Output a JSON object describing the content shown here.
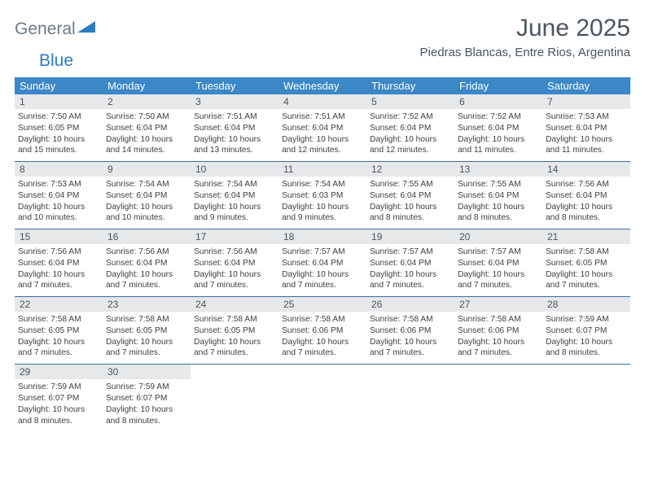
{
  "brand": {
    "word1": "General",
    "word2": "Blue"
  },
  "title": "June 2025",
  "location": "Piedras Blancas, Entre Rios, Argentina",
  "colors": {
    "header_bg": "#3b87c8",
    "header_text": "#ffffff",
    "daynum_bg": "#e7e8e9",
    "week_border": "#3b6f9f",
    "title_color": "#4a5560",
    "body_text": "#3a3f44",
    "logo_gray": "#6b7a87",
    "logo_blue": "#2f7bbf"
  },
  "dayNames": [
    "Sunday",
    "Monday",
    "Tuesday",
    "Wednesday",
    "Thursday",
    "Friday",
    "Saturday"
  ],
  "weeks": [
    [
      {
        "n": "1",
        "sr": "7:50 AM",
        "ss": "6:05 PM",
        "dl": "10 hours and 15 minutes."
      },
      {
        "n": "2",
        "sr": "7:50 AM",
        "ss": "6:04 PM",
        "dl": "10 hours and 14 minutes."
      },
      {
        "n": "3",
        "sr": "7:51 AM",
        "ss": "6:04 PM",
        "dl": "10 hours and 13 minutes."
      },
      {
        "n": "4",
        "sr": "7:51 AM",
        "ss": "6:04 PM",
        "dl": "10 hours and 12 minutes."
      },
      {
        "n": "5",
        "sr": "7:52 AM",
        "ss": "6:04 PM",
        "dl": "10 hours and 12 minutes."
      },
      {
        "n": "6",
        "sr": "7:52 AM",
        "ss": "6:04 PM",
        "dl": "10 hours and 11 minutes."
      },
      {
        "n": "7",
        "sr": "7:53 AM",
        "ss": "6:04 PM",
        "dl": "10 hours and 11 minutes."
      }
    ],
    [
      {
        "n": "8",
        "sr": "7:53 AM",
        "ss": "6:04 PM",
        "dl": "10 hours and 10 minutes."
      },
      {
        "n": "9",
        "sr": "7:54 AM",
        "ss": "6:04 PM",
        "dl": "10 hours and 10 minutes."
      },
      {
        "n": "10",
        "sr": "7:54 AM",
        "ss": "6:04 PM",
        "dl": "10 hours and 9 minutes."
      },
      {
        "n": "11",
        "sr": "7:54 AM",
        "ss": "6:03 PM",
        "dl": "10 hours and 9 minutes."
      },
      {
        "n": "12",
        "sr": "7:55 AM",
        "ss": "6:04 PM",
        "dl": "10 hours and 8 minutes."
      },
      {
        "n": "13",
        "sr": "7:55 AM",
        "ss": "6:04 PM",
        "dl": "10 hours and 8 minutes."
      },
      {
        "n": "14",
        "sr": "7:56 AM",
        "ss": "6:04 PM",
        "dl": "10 hours and 8 minutes."
      }
    ],
    [
      {
        "n": "15",
        "sr": "7:56 AM",
        "ss": "6:04 PM",
        "dl": "10 hours and 7 minutes."
      },
      {
        "n": "16",
        "sr": "7:56 AM",
        "ss": "6:04 PM",
        "dl": "10 hours and 7 minutes."
      },
      {
        "n": "17",
        "sr": "7:56 AM",
        "ss": "6:04 PM",
        "dl": "10 hours and 7 minutes."
      },
      {
        "n": "18",
        "sr": "7:57 AM",
        "ss": "6:04 PM",
        "dl": "10 hours and 7 minutes."
      },
      {
        "n": "19",
        "sr": "7:57 AM",
        "ss": "6:04 PM",
        "dl": "10 hours and 7 minutes."
      },
      {
        "n": "20",
        "sr": "7:57 AM",
        "ss": "6:04 PM",
        "dl": "10 hours and 7 minutes."
      },
      {
        "n": "21",
        "sr": "7:58 AM",
        "ss": "6:05 PM",
        "dl": "10 hours and 7 minutes."
      }
    ],
    [
      {
        "n": "22",
        "sr": "7:58 AM",
        "ss": "6:05 PM",
        "dl": "10 hours and 7 minutes."
      },
      {
        "n": "23",
        "sr": "7:58 AM",
        "ss": "6:05 PM",
        "dl": "10 hours and 7 minutes."
      },
      {
        "n": "24",
        "sr": "7:58 AM",
        "ss": "6:05 PM",
        "dl": "10 hours and 7 minutes."
      },
      {
        "n": "25",
        "sr": "7:58 AM",
        "ss": "6:06 PM",
        "dl": "10 hours and 7 minutes."
      },
      {
        "n": "26",
        "sr": "7:58 AM",
        "ss": "6:06 PM",
        "dl": "10 hours and 7 minutes."
      },
      {
        "n": "27",
        "sr": "7:58 AM",
        "ss": "6:06 PM",
        "dl": "10 hours and 7 minutes."
      },
      {
        "n": "28",
        "sr": "7:59 AM",
        "ss": "6:07 PM",
        "dl": "10 hours and 8 minutes."
      }
    ],
    [
      {
        "n": "29",
        "sr": "7:59 AM",
        "ss": "6:07 PM",
        "dl": "10 hours and 8 minutes."
      },
      {
        "n": "30",
        "sr": "7:59 AM",
        "ss": "6:07 PM",
        "dl": "10 hours and 8 minutes."
      },
      null,
      null,
      null,
      null,
      null
    ]
  ],
  "labels": {
    "sunrise": "Sunrise:",
    "sunset": "Sunset:",
    "daylight": "Daylight:"
  }
}
